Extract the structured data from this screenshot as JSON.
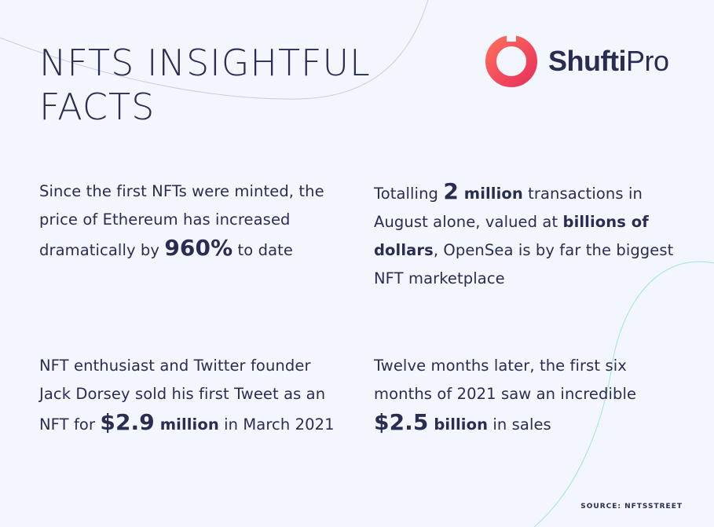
{
  "header": {
    "title_line1": "NFTS INSIGHTFUL",
    "title_line2": "FACTS"
  },
  "logo": {
    "word_bold": "Shufti",
    "word_light": "Pro",
    "accent_color": "#f2545b"
  },
  "facts": [
    {
      "pre": "Since the first NFTs were minted, the price of Ethereum has increased dramatically by ",
      "highlight": "960%",
      "post": " to date"
    },
    {
      "pre": "Totalling ",
      "highlight_num": "2",
      "highlight_word": " million",
      "mid": " transactions in August alone, valued at ",
      "emphasis": "billions of dollars",
      "post": ", OpenSea is by far the biggest NFT marketplace"
    },
    {
      "pre": "NFT enthusiast and Twitter founder Jack Dorsey sold his first Tweet as an NFT for ",
      "highlight_num": "$2.9",
      "highlight_word": " million",
      "post": " in March 2021"
    },
    {
      "pre": "Twelve months later, the first six months of 2021 saw an incredible ",
      "highlight_num": "$2.5",
      "highlight_word": " billion",
      "post": " in sales"
    }
  ],
  "source": "SOURCE: NFTSSTREET"
}
